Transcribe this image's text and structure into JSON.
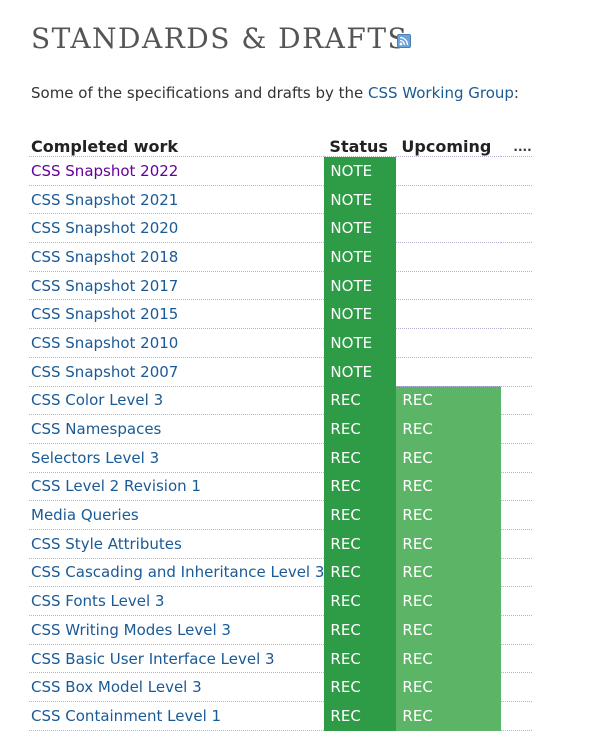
{
  "page": {
    "title": "STANDARDS & DRAFTS",
    "feed_icon": "rss-feed-icon",
    "intro_text": "Some of the specifications and drafts by the ",
    "intro_link": "CSS Working Group",
    "intro_suffix": ":"
  },
  "table": {
    "headers": {
      "completed": "Completed work",
      "status": "Status",
      "upcoming": "Upcoming",
      "more": "...."
    },
    "rows": [
      {
        "name": "CSS Snapshot 2022",
        "status": "NOTE",
        "upcoming": "",
        "visited": true
      },
      {
        "name": "CSS Snapshot 2021",
        "status": "NOTE",
        "upcoming": ""
      },
      {
        "name": "CSS Snapshot 2020",
        "status": "NOTE",
        "upcoming": ""
      },
      {
        "name": "CSS Snapshot 2018",
        "status": "NOTE",
        "upcoming": ""
      },
      {
        "name": "CSS Snapshot 2017",
        "status": "NOTE",
        "upcoming": ""
      },
      {
        "name": "CSS Snapshot 2015",
        "status": "NOTE",
        "upcoming": ""
      },
      {
        "name": "CSS Snapshot 2010",
        "status": "NOTE",
        "upcoming": ""
      },
      {
        "name": "CSS Snapshot 2007",
        "status": "NOTE",
        "upcoming": ""
      },
      {
        "name": "CSS Color Level 3",
        "status": "REC",
        "upcoming": "REC"
      },
      {
        "name": "CSS Namespaces",
        "status": "REC",
        "upcoming": "REC"
      },
      {
        "name": "Selectors Level 3",
        "status": "REC",
        "upcoming": "REC"
      },
      {
        "name": "CSS Level 2 Revision 1",
        "status": "REC",
        "upcoming": "REC"
      },
      {
        "name": "Media Queries",
        "status": "REC",
        "upcoming": "REC"
      },
      {
        "name": "CSS Style Attributes",
        "status": "REC",
        "upcoming": "REC"
      },
      {
        "name": "CSS Cascading and Inheritance Level 3",
        "status": "REC",
        "upcoming": "REC"
      },
      {
        "name": "CSS Fonts Level 3",
        "status": "REC",
        "upcoming": "REC"
      },
      {
        "name": "CSS Writing Modes Level 3",
        "status": "REC",
        "upcoming": "REC"
      },
      {
        "name": "CSS Basic User Interface Level 3",
        "status": "REC",
        "upcoming": "REC"
      },
      {
        "name": "CSS Box Model Level 3",
        "status": "REC",
        "upcoming": "REC"
      },
      {
        "name": "CSS Containment Level 1",
        "status": "REC",
        "upcoming": "REC"
      }
    ]
  },
  "colors": {
    "status_green": "#2e9b46",
    "upcoming_green": "#5cb567",
    "link": "#1a5a96",
    "visited_link": "#660099"
  }
}
